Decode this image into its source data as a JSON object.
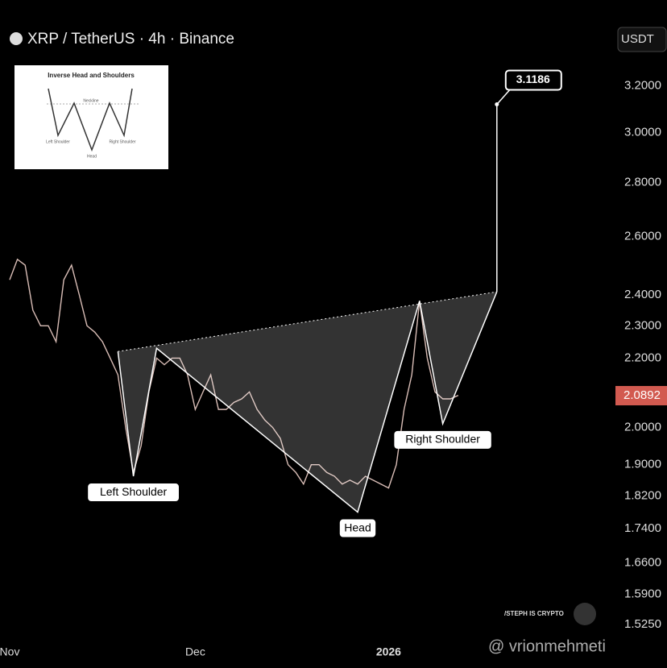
{
  "header": {
    "symbol": "XRP / TetherUS · 4h · Binance",
    "currency": "USDT"
  },
  "inset": {
    "title": "Inverse Head and Shoulders",
    "neckline": "Neckline",
    "left": "Left Shoulder",
    "right": "Right Shoulder",
    "head": "Head"
  },
  "watermarks": [
    "/STEPH IS CRYPTO",
    "@ vrionmehmeti"
  ],
  "chart_data": {
    "type": "line",
    "log_scale": true,
    "categories": [
      "Nov",
      null,
      null,
      null,
      null,
      null,
      null,
      null,
      null,
      null,
      null,
      null,
      null,
      null,
      null,
      null,
      null,
      null,
      null,
      null,
      null,
      null,
      null,
      null,
      "Dec",
      null,
      null,
      null,
      null,
      null,
      null,
      null,
      null,
      null,
      null,
      null,
      null,
      null,
      null,
      null,
      null,
      null,
      null,
      null,
      null,
      null,
      null,
      null,
      null,
      "2026",
      null,
      null,
      null,
      null,
      null,
      null,
      null,
      null,
      null,
      null,
      null,
      null,
      null,
      null,
      null,
      null,
      null,
      null,
      null,
      null,
      null,
      null,
      null,
      null,
      null,
      null,
      null,
      null,
      null
    ],
    "series": [
      {
        "color": "#d9bdb6",
        "values": [
          2.45,
          2.52,
          2.5,
          2.35,
          2.3,
          2.3,
          2.25,
          2.45,
          2.5,
          2.4,
          2.3,
          2.28,
          2.25,
          2.2,
          2.15,
          2.0,
          1.88,
          1.95,
          2.1,
          2.2,
          2.18,
          2.2,
          2.2,
          2.15,
          2.05,
          2.1,
          2.15,
          2.05,
          2.05,
          2.07,
          2.08,
          2.1,
          2.05,
          2.02,
          2.0,
          1.97,
          1.9,
          1.88,
          1.85,
          1.9,
          1.9,
          1.88,
          1.87,
          1.85,
          1.86,
          1.85,
          1.87,
          1.86,
          1.85,
          1.84,
          1.9,
          2.05,
          2.15,
          2.38,
          2.2,
          2.1,
          2.08,
          2.08,
          2.09,
          null,
          null,
          null,
          null,
          null,
          null,
          null,
          null,
          null,
          null,
          null,
          null,
          null,
          null,
          null,
          null,
          null,
          null,
          null,
          null
        ]
      }
    ],
    "ylim": [
      1.5,
      3.6
    ],
    "yticks": [
      {
        "value": 3.2,
        "label": "3.2000"
      },
      {
        "value": 3.0,
        "label": "3.0000"
      },
      {
        "value": 2.8,
        "label": "2.8000"
      },
      {
        "value": 2.6,
        "label": "2.6000"
      },
      {
        "value": 2.4,
        "label": "2.4000"
      },
      {
        "value": 2.3,
        "label": "2.3000"
      },
      {
        "value": 2.2,
        "label": "2.2000"
      },
      {
        "value": 2.0,
        "label": "2.0000"
      },
      {
        "value": 1.9,
        "label": "1.9000"
      },
      {
        "value": 1.82,
        "label": "1.8200"
      },
      {
        "value": 1.74,
        "label": "1.7400"
      },
      {
        "value": 1.66,
        "label": "1.6600"
      },
      {
        "value": 1.59,
        "label": "1.5900"
      },
      {
        "value": 1.525,
        "label": "1.5250"
      }
    ],
    "current_price": {
      "value": 2.0892,
      "label": "2.0892"
    },
    "pattern": {
      "x": [
        14,
        16,
        19,
        45,
        53,
        56,
        63
      ],
      "values": [
        2.22,
        1.87,
        2.23,
        1.78,
        2.38,
        2.01,
        2.41
      ],
      "point_labels": [
        null,
        "Left Shoulder",
        null,
        "Head",
        null,
        "Right Shoulder",
        null
      ]
    },
    "target": {
      "x": 63,
      "value": 3.1186,
      "label": "3.1186"
    }
  }
}
